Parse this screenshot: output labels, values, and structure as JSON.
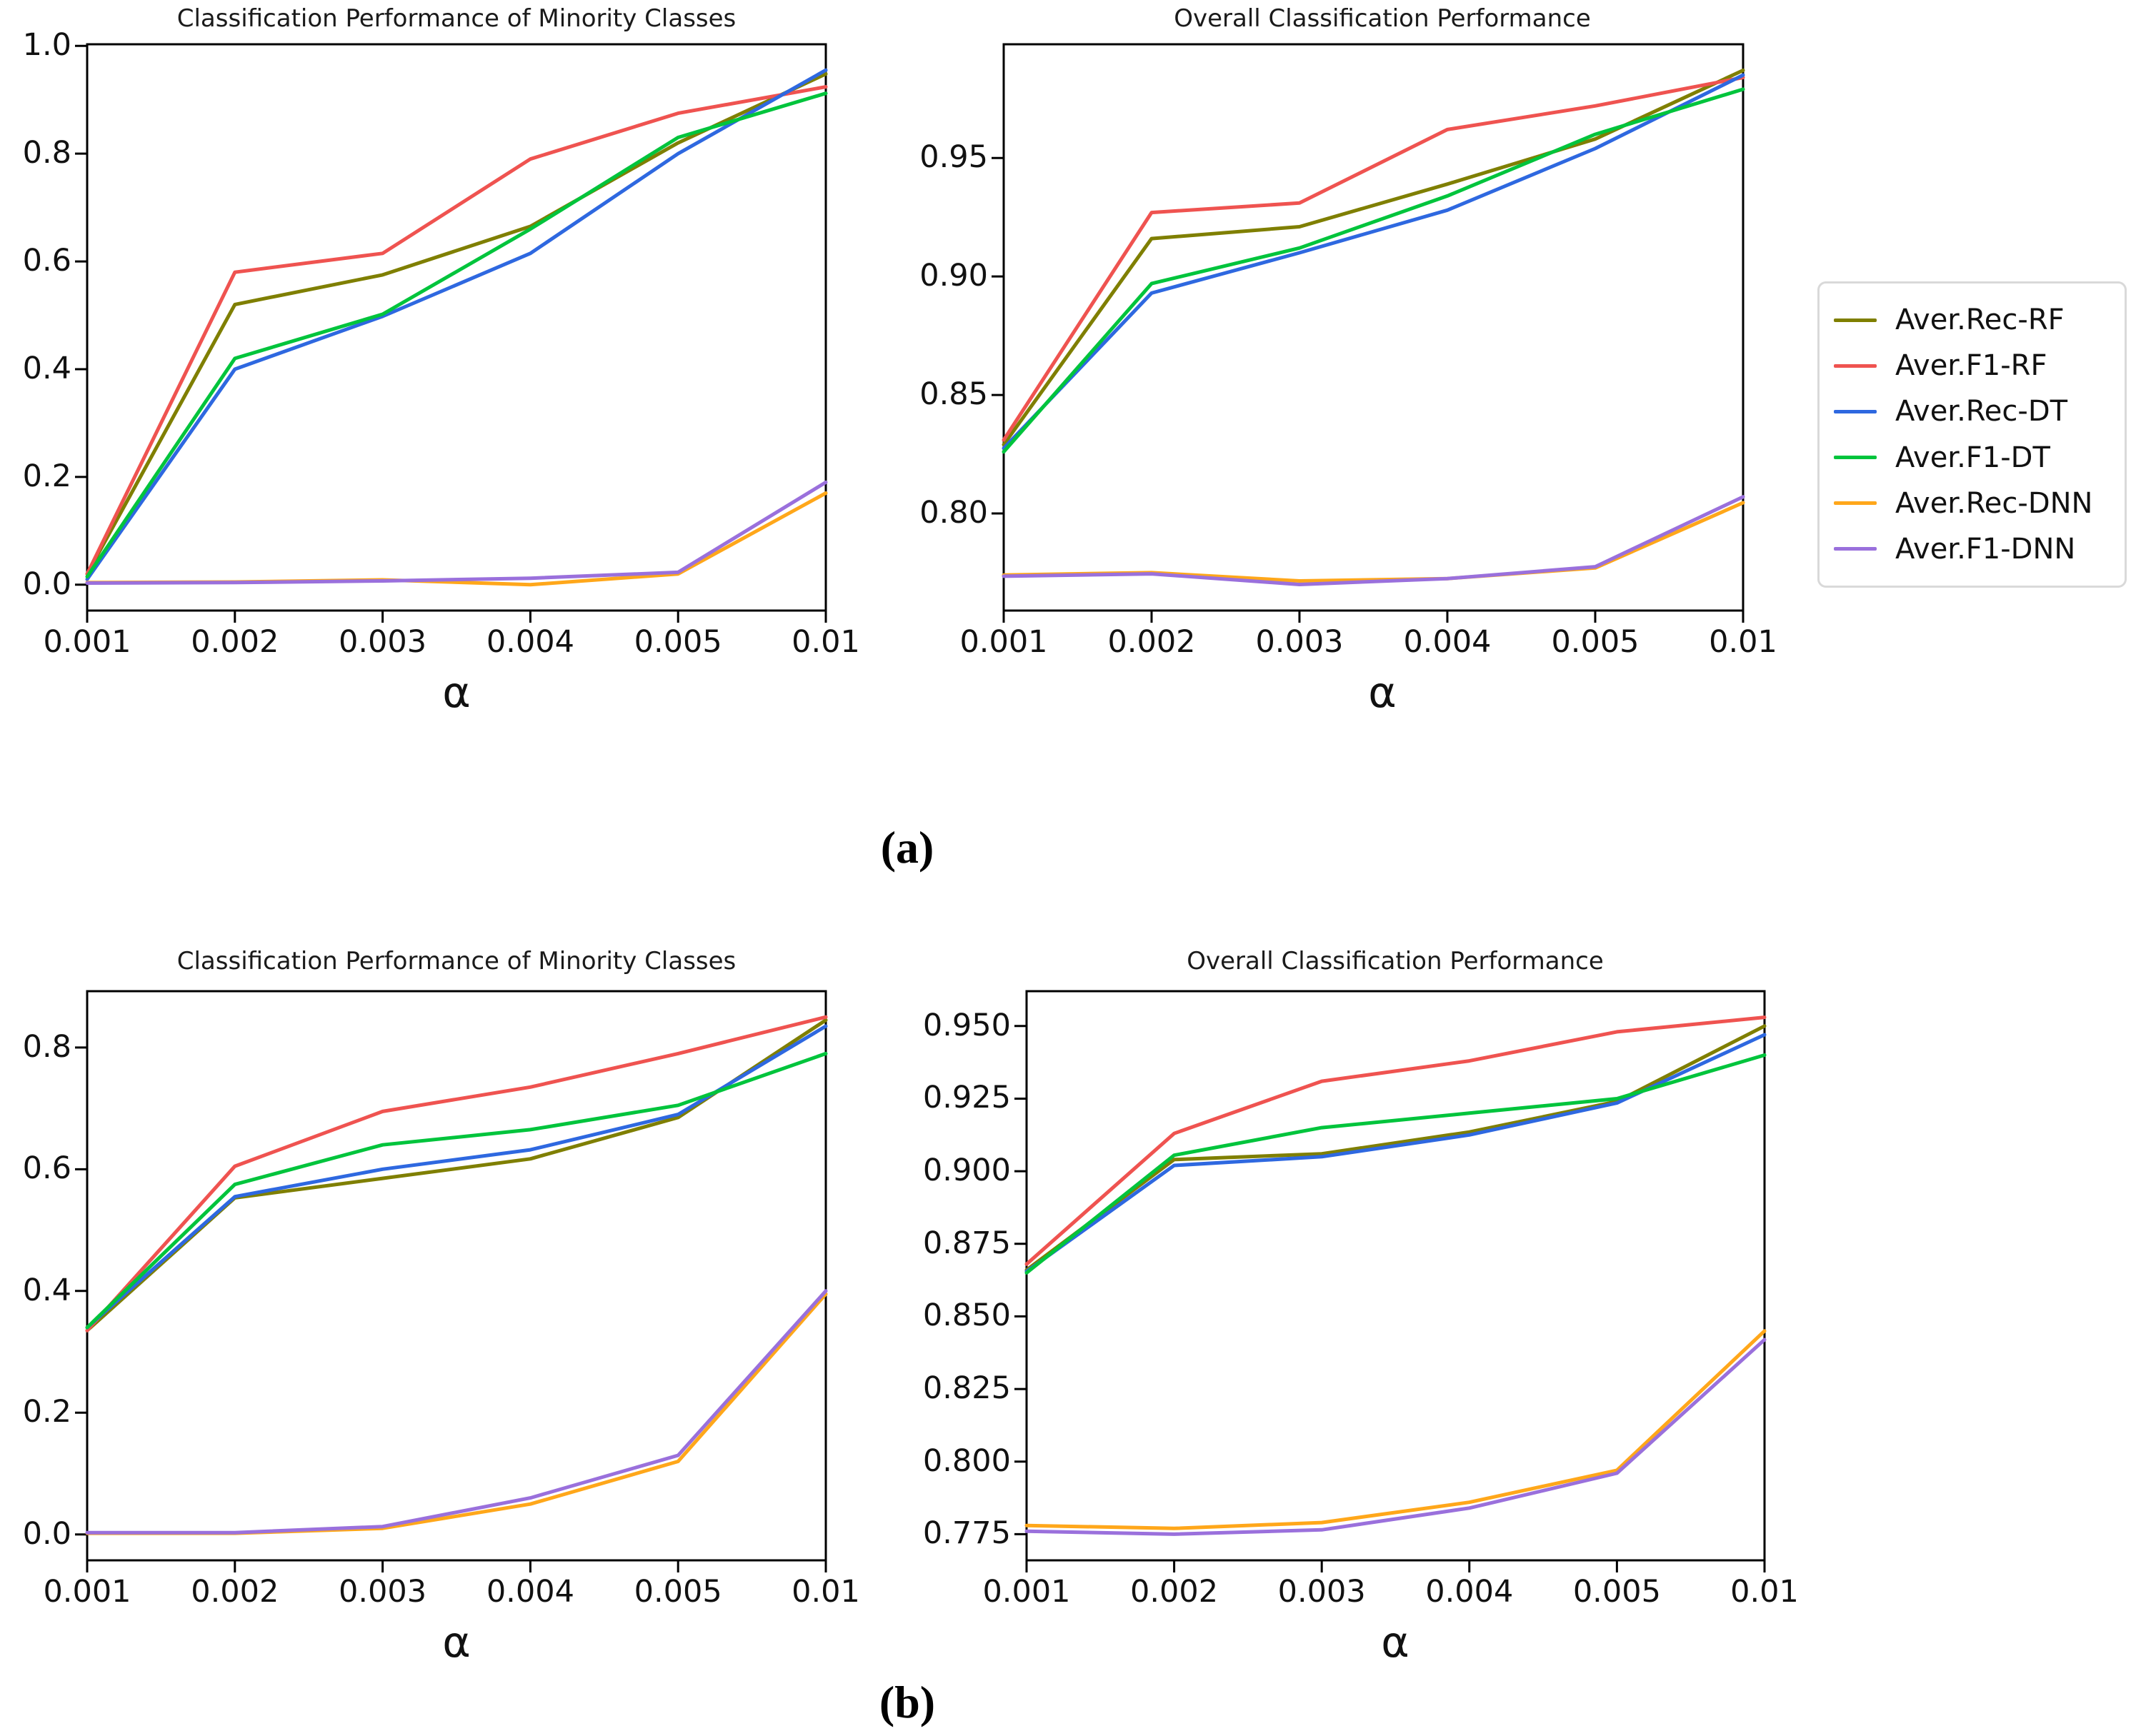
{
  "figure": {
    "panels": {
      "a": "(a)",
      "b": "(b)"
    }
  },
  "legend": {
    "position": "right-of-top-row",
    "items": [
      {
        "label": "Aver.Rec-RF",
        "color": "#7f7f00"
      },
      {
        "label": "Aver.F1-RF",
        "color": "#ef5350"
      },
      {
        "label": "Aver.Rec-DT",
        "color": "#2e68e0"
      },
      {
        "label": "Aver.F1-DT",
        "color": "#00c43c"
      },
      {
        "label": "Aver.Rec-DNN",
        "color": "#ffa71a"
      },
      {
        "label": "Aver.F1-DNN",
        "color": "#9a70dc"
      }
    ]
  },
  "chart_data": [
    {
      "type": "line",
      "panel": "a",
      "title": "Classification Performance of Minority Classes",
      "xlabel": "α",
      "ylabel": "",
      "grid": false,
      "categories": [
        "0.001",
        "0.002",
        "0.003",
        "0.004",
        "0.005",
        "0.01"
      ],
      "yticks": [
        "1.0",
        "0.8",
        "0.6",
        "0.4",
        "0.2",
        "0.0"
      ],
      "ylim": [
        -0.048,
        1.003
      ],
      "series": [
        {
          "name": "Aver.Rec-RF",
          "values": [
            0.02,
            0.52,
            0.575,
            0.665,
            0.82,
            0.948
          ]
        },
        {
          "name": "Aver.F1-RF",
          "values": [
            0.02,
            0.58,
            0.615,
            0.79,
            0.875,
            0.924
          ]
        },
        {
          "name": "Aver.Rec-DT",
          "values": [
            0.01,
            0.4,
            0.498,
            0.615,
            0.8,
            0.955
          ]
        },
        {
          "name": "Aver.F1-DT",
          "values": [
            0.015,
            0.42,
            0.502,
            0.66,
            0.83,
            0.912
          ]
        },
        {
          "name": "Aver.Rec-DNN",
          "values": [
            0.004,
            0.005,
            0.009,
            0.0,
            0.02,
            0.17
          ]
        },
        {
          "name": "Aver.F1-DNN",
          "values": [
            0.003,
            0.004,
            0.007,
            0.012,
            0.023,
            0.19
          ]
        }
      ]
    },
    {
      "type": "line",
      "panel": "a",
      "title": "Overall Classification Performance",
      "xlabel": "α",
      "ylabel": "",
      "grid": false,
      "categories": [
        "0.001",
        "0.002",
        "0.003",
        "0.004",
        "0.005",
        "0.01"
      ],
      "yticks": [
        "0.95",
        "0.90",
        "0.85",
        "0.80"
      ],
      "ylim": [
        0.759,
        0.998
      ],
      "series": [
        {
          "name": "Aver.Rec-RF",
          "values": [
            0.829,
            0.916,
            0.921,
            0.939,
            0.958,
            0.987
          ]
        },
        {
          "name": "Aver.F1-RF",
          "values": [
            0.831,
            0.927,
            0.931,
            0.962,
            0.972,
            0.984
          ]
        },
        {
          "name": "Aver.Rec-DT",
          "values": [
            0.8275,
            0.893,
            0.91,
            0.928,
            0.954,
            0.985
          ]
        },
        {
          "name": "Aver.F1-DT",
          "values": [
            0.826,
            0.897,
            0.912,
            0.934,
            0.96,
            0.979
          ]
        },
        {
          "name": "Aver.Rec-DNN",
          "values": [
            0.774,
            0.775,
            0.7715,
            0.7725,
            0.777,
            0.8045
          ]
        },
        {
          "name": "Aver.F1-DNN",
          "values": [
            0.7735,
            0.7745,
            0.77,
            0.7725,
            0.7775,
            0.807
          ]
        }
      ]
    },
    {
      "type": "line",
      "panel": "b",
      "title": "Classification Performance of Minority Classes",
      "xlabel": "α",
      "ylabel": "",
      "grid": false,
      "categories": [
        "0.001",
        "0.002",
        "0.003",
        "0.004",
        "0.005",
        "0.01"
      ],
      "yticks": [
        "0.8",
        "0.6",
        "0.4",
        "0.2",
        "0.0"
      ],
      "ylim": [
        -0.0425,
        0.8925
      ],
      "series": [
        {
          "name": "Aver.Rec-RF",
          "values": [
            0.335,
            0.553,
            0.585,
            0.617,
            0.685,
            0.845
          ]
        },
        {
          "name": "Aver.F1-RF",
          "values": [
            0.335,
            0.605,
            0.695,
            0.735,
            0.79,
            0.85
          ]
        },
        {
          "name": "Aver.Rec-DT",
          "values": [
            0.34,
            0.555,
            0.6,
            0.632,
            0.69,
            0.835
          ]
        },
        {
          "name": "Aver.F1-DT",
          "values": [
            0.34,
            0.575,
            0.64,
            0.665,
            0.705,
            0.79
          ]
        },
        {
          "name": "Aver.Rec-DNN",
          "values": [
            0.002,
            0.002,
            0.01,
            0.05,
            0.12,
            0.395
          ]
        },
        {
          "name": "Aver.F1-DNN",
          "values": [
            0.003,
            0.003,
            0.013,
            0.06,
            0.13,
            0.4
          ]
        }
      ]
    },
    {
      "type": "line",
      "panel": "b",
      "title": "Overall Classification Performance",
      "xlabel": "α",
      "ylabel": "",
      "grid": false,
      "categories": [
        "0.001",
        "0.002",
        "0.003",
        "0.004",
        "0.005",
        "0.01"
      ],
      "yticks": [
        "0.950",
        "0.925",
        "0.900",
        "0.875",
        "0.850",
        "0.825",
        "0.800",
        "0.775"
      ],
      "ylim": [
        0.766,
        0.962
      ],
      "series": [
        {
          "name": "Aver.Rec-RF",
          "values": [
            0.866,
            0.904,
            0.906,
            0.9135,
            0.924,
            0.95
          ]
        },
        {
          "name": "Aver.F1-RF",
          "values": [
            0.868,
            0.913,
            0.931,
            0.938,
            0.948,
            0.953
          ]
        },
        {
          "name": "Aver.Rec-DT",
          "values": [
            0.8655,
            0.902,
            0.905,
            0.9125,
            0.9235,
            0.947
          ]
        },
        {
          "name": "Aver.F1-DT",
          "values": [
            0.865,
            0.9055,
            0.915,
            0.92,
            0.925,
            0.94
          ]
        },
        {
          "name": "Aver.Rec-DNN",
          "values": [
            0.778,
            0.777,
            0.779,
            0.786,
            0.797,
            0.845
          ]
        },
        {
          "name": "Aver.F1-DNN",
          "values": [
            0.776,
            0.775,
            0.7765,
            0.784,
            0.796,
            0.842
          ]
        }
      ]
    }
  ]
}
